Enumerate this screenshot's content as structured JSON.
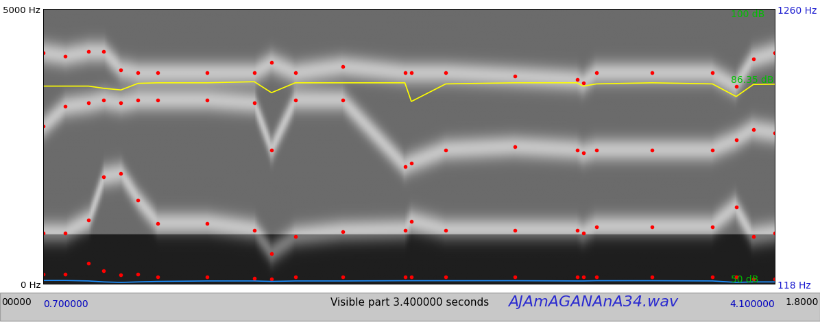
{
  "chart_data": {
    "type": "spectrogram",
    "title": "AJAmAGANAnA34.wav",
    "window_texts": {
      "start": "00000",
      "middle": "Visible part 3.400000 seconds",
      "end": "1.8000"
    },
    "x": [
      0.7,
      0.8,
      0.91,
      0.98,
      1.06,
      1.14,
      1.23,
      1.46,
      1.68,
      1.76,
      1.87,
      2.09,
      2.38,
      2.41,
      2.57,
      2.89,
      3.18,
      3.21,
      3.27,
      3.53,
      3.81,
      3.92,
      4.0,
      4.1
    ],
    "xlim": [
      0.7,
      4.1
    ],
    "xticks": [
      {
        "value": 0.7,
        "label": "0.700000"
      },
      {
        "value": 4.1,
        "label": "4.100000"
      }
    ],
    "ylim": [
      0,
      5000
    ],
    "yticks": [
      {
        "value": 0,
        "label": "0 Hz"
      },
      {
        "value": 5000,
        "label": "5000 Hz"
      }
    ],
    "y2lim": [
      118,
      1260
    ],
    "y2ticks": [
      {
        "value": 118,
        "label": "118 Hz"
      },
      {
        "value": 1260,
        "label": "1260 Hz"
      }
    ],
    "y3lim": [
      50,
      100
    ],
    "y3ticks": [
      {
        "value": 50,
        "label": "50 dB"
      },
      {
        "value": 100,
        "label": "100 dB"
      }
    ],
    "cursor": {
      "value": 86.35,
      "label": "86.35 dB",
      "axis": "y3"
    },
    "tick_labels": "y",
    "series": [
      {
        "type": "scatter",
        "color": "#ff0000",
        "marker": "point",
        "axis": "y",
        "values": [
          180,
          180,
          370,
          240,
          160,
          180,
          130,
          120,
          100,
          90,
          120,
          120,
          120,
          130,
          120,
          120,
          130,
          120,
          120,
          120,
          130,
          120,
          90,
          90
        ]
      },
      {
        "type": "scatter",
        "color": "#ff0000",
        "marker": "point",
        "axis": "y",
        "values": [
          920,
          920,
          1160,
          1950,
          2010,
          1520,
          1100,
          1100,
          980,
          550,
          860,
          950,
          980,
          1140,
          980,
          980,
          980,
          920,
          1040,
          1040,
          1040,
          1400,
          860,
          920
        ]
      },
      {
        "type": "scatter",
        "color": "#ff0000",
        "marker": "point",
        "axis": "y",
        "values": [
          2870,
          3230,
          3290,
          3350,
          3290,
          3350,
          3350,
          3350,
          3290,
          2440,
          3350,
          3350,
          2140,
          2200,
          2440,
          2500,
          2440,
          2380,
          2440,
          2440,
          2440,
          2620,
          2810,
          2750
        ]
      },
      {
        "type": "scatter",
        "color": "#ff0000",
        "marker": "point",
        "axis": "y",
        "values": [
          4210,
          4150,
          4230,
          4230,
          3900,
          3840,
          3840,
          3840,
          3840,
          4030,
          3840,
          3960,
          3840,
          3840,
          3840,
          3780,
          3720,
          3660,
          3840,
          3840,
          3840,
          3600,
          4090,
          4210
        ]
      },
      {
        "type": "line",
        "color": "#1e90ff",
        "marker": "none",
        "line_style": "solid",
        "axis": "y2",
        "values": [
          132,
          132,
          130,
          126,
          124,
          126,
          128,
          130,
          130,
          128,
          130,
          130,
          131,
          131,
          131,
          131,
          130,
          130,
          131,
          131,
          130,
          124,
          126,
          126
        ]
      },
      {
        "type": "line",
        "color": "#ffff00",
        "marker": "none",
        "line_style": "solid",
        "axis": "y3",
        "values": [
          86.0,
          86.0,
          86.0,
          85.6,
          85.3,
          86.5,
          86.6,
          86.6,
          86.8,
          84.8,
          86.6,
          86.6,
          86.6,
          83.2,
          86.4,
          86.6,
          86.6,
          86.0,
          86.4,
          86.6,
          86.4,
          84.1,
          86.3,
          86.35
        ]
      }
    ]
  }
}
